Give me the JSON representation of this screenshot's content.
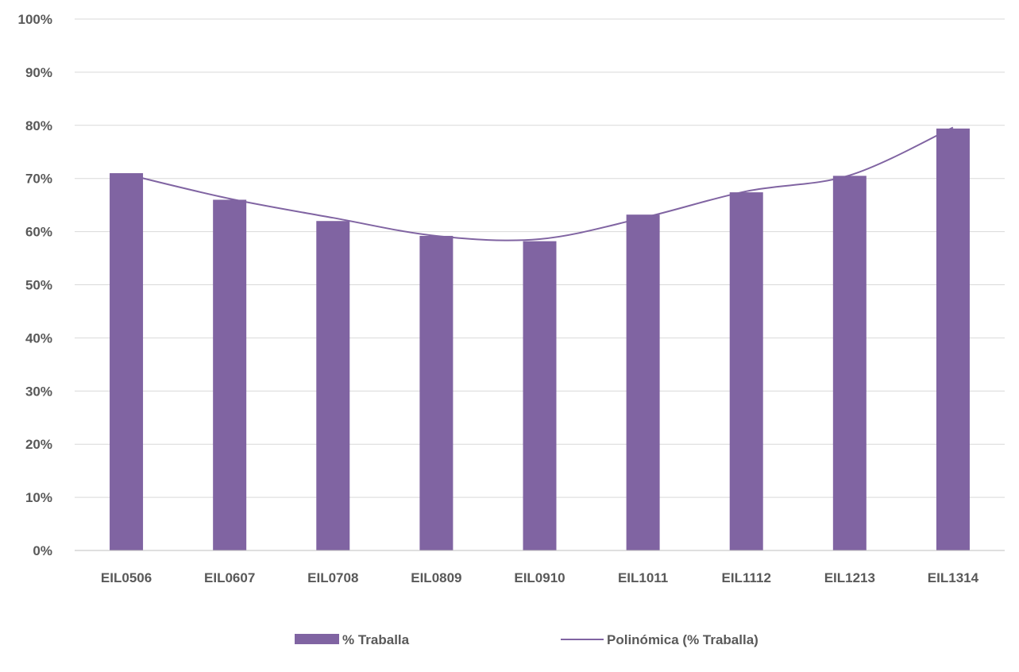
{
  "chart_data": {
    "type": "bar",
    "categories": [
      "EIL0506",
      "EIL0607",
      "EIL0708",
      "EIL0809",
      "EIL0910",
      "EIL1011",
      "EIL1112",
      "EIL1213",
      "EIL1314"
    ],
    "series": [
      {
        "name": "% Traballa",
        "values": [
          71.0,
          66.0,
          62.0,
          59.2,
          58.2,
          63.2,
          67.4,
          70.5,
          79.4
        ]
      }
    ],
    "trendline": {
      "name": "Polinómica (% Traballa)",
      "type": "polynomial",
      "values": [
        70.8,
        66.2,
        62.6,
        59.2,
        58.6,
        62.6,
        67.6,
        70.6,
        79.6
      ]
    },
    "ylim": [
      0,
      100
    ],
    "yticks": [
      "0%",
      "10%",
      "20%",
      "30%",
      "40%",
      "50%",
      "60%",
      "70%",
      "80%",
      "90%",
      "100%"
    ],
    "grid": true,
    "legend_position": "bottom",
    "colors": {
      "bar": "#8064a2",
      "line": "#8064a2",
      "grid": "#d9d9d9",
      "axis": "#bfbfbf",
      "text": "#595959"
    },
    "title": "",
    "xlabel": "",
    "ylabel": ""
  }
}
